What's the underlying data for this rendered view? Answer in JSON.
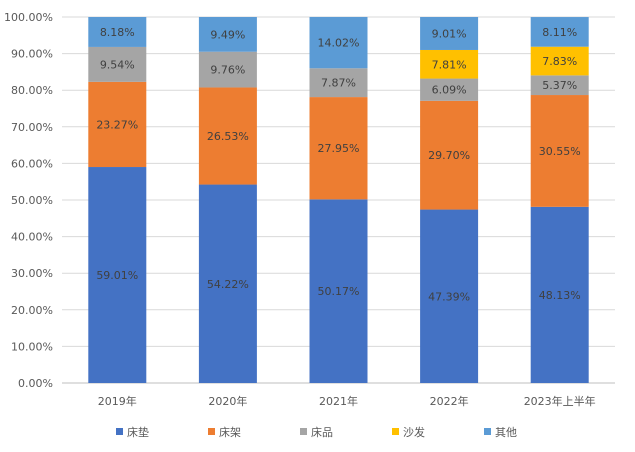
{
  "chart_data": {
    "type": "bar",
    "stacked": true,
    "title": "",
    "xlabel": "",
    "ylabel": "",
    "ylim": [
      0,
      100
    ],
    "yticks": [
      "0.00%",
      "10.00%",
      "20.00%",
      "30.00%",
      "40.00%",
      "50.00%",
      "60.00%",
      "70.00%",
      "80.00%",
      "90.00%",
      "100.00%"
    ],
    "grid": true,
    "legend_position": "bottom",
    "categories": [
      "2019年",
      "2020年",
      "2021年",
      "2022年",
      "2023年上半年"
    ],
    "series": [
      {
        "name": "床垫",
        "color": "#4472C4",
        "values": [
          59.01,
          54.22,
          50.17,
          47.39,
          48.13
        ],
        "labels": [
          "59.01%",
          "54.22%",
          "50.17%",
          "47.39%",
          "48.13%"
        ]
      },
      {
        "name": "床架",
        "color": "#ED7D31",
        "values": [
          23.27,
          26.53,
          27.95,
          29.7,
          30.55
        ],
        "labels": [
          "23.27%",
          "26.53%",
          "27.95%",
          "29.70%",
          "30.55%"
        ]
      },
      {
        "name": "床品",
        "color": "#A5A5A5",
        "values": [
          9.54,
          9.76,
          7.87,
          6.09,
          5.37
        ],
        "labels": [
          "9.54%",
          "9.76%",
          "7.87%",
          "6.09%",
          "5.37%"
        ]
      },
      {
        "name": "沙发",
        "color": "#FFC000",
        "values": [
          0,
          0,
          0,
          7.81,
          7.83
        ],
        "labels": [
          "",
          "",
          "",
          "7.81%",
          "7.83%"
        ]
      },
      {
        "name": "其他",
        "color": "#5B9BD5",
        "values": [
          8.18,
          9.49,
          14.02,
          9.01,
          8.11
        ],
        "labels": [
          "8.18%",
          "9.49%",
          "14.02%",
          "9.01%",
          "8.11%"
        ]
      }
    ]
  }
}
